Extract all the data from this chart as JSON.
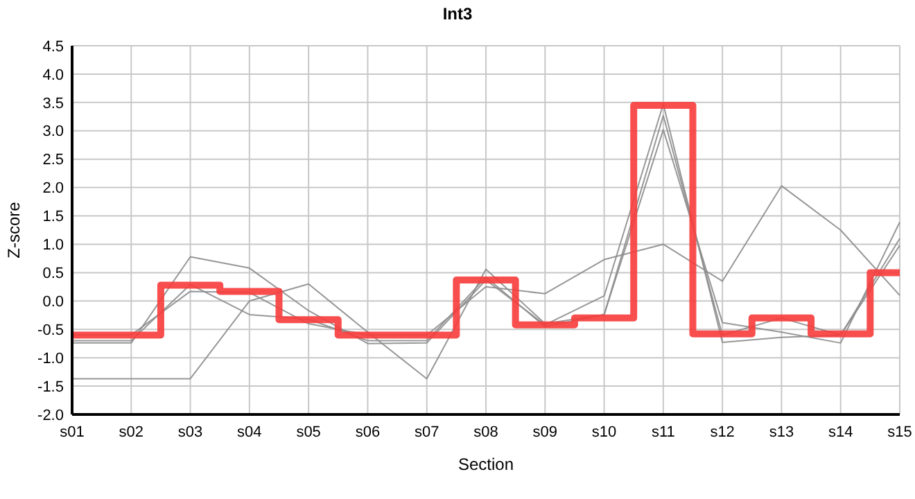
{
  "chart_data": {
    "type": "line",
    "title": "Int3",
    "xlabel": "Section",
    "ylabel": "Z-score",
    "categories": [
      "s01",
      "s02",
      "s03",
      "s04",
      "s05",
      "s06",
      "s07",
      "s08",
      "s09",
      "s10",
      "s11",
      "s12",
      "s13",
      "s14",
      "s15"
    ],
    "ylim": [
      -2,
      4.5
    ],
    "yticks": [
      {
        "value": -2,
        "label": "-2.0"
      },
      {
        "value": -1.5,
        "label": "-1.5"
      },
      {
        "value": -1,
        "label": "-1.0"
      },
      {
        "value": -0.5,
        "label": "-0.5"
      },
      {
        "value": 0,
        "label": "0.0"
      },
      {
        "value": 0.5,
        "label": "0.5"
      },
      {
        "value": 1,
        "label": "1.0"
      },
      {
        "value": 1.5,
        "label": "1.5"
      },
      {
        "value": 2,
        "label": "2.0"
      },
      {
        "value": 2.5,
        "label": "2.5"
      },
      {
        "value": 3,
        "label": "3.0"
      },
      {
        "value": 3.5,
        "label": "3.5"
      },
      {
        "value": 4,
        "label": "4.0"
      },
      {
        "value": 4.5,
        "label": "4.5"
      }
    ],
    "grid": true,
    "marker": "none",
    "series": [
      {
        "color": "#8c8c8c",
        "values": [
          -0.6,
          -0.6,
          0.17,
          0.15,
          -0.4,
          -0.6,
          -0.6,
          0.25,
          0.13,
          0.73,
          1.0,
          0.35,
          2.03,
          1.25,
          0.1
        ]
      },
      {
        "color": "#8c8c8c",
        "values": [
          -1.37,
          -1.37,
          -1.37,
          0.0,
          0.3,
          -0.55,
          -1.37,
          0.56,
          -0.4,
          -0.24,
          3.02,
          -0.38,
          -0.55,
          -0.74,
          1.39
        ]
      },
      {
        "color": "#8c8c8c",
        "values": [
          -0.74,
          -0.74,
          0.78,
          0.58,
          -0.17,
          -0.75,
          -0.74,
          0.37,
          -0.42,
          0.09,
          3.47,
          -0.73,
          -0.64,
          -0.6,
          1.1
        ]
      },
      {
        "color": "#8c8c8c",
        "values": [
          -0.7,
          -0.7,
          0.29,
          -0.24,
          -0.32,
          -0.7,
          -0.7,
          0.42,
          -0.45,
          -0.24,
          3.27,
          -0.6,
          -0.3,
          -0.6,
          0.98
        ]
      },
      {
        "type": "step",
        "color": "#f73b3b",
        "values": [
          -0.6,
          -0.6,
          0.28,
          0.17,
          -0.33,
          -0.6,
          -0.6,
          0.37,
          -0.42,
          -0.3,
          3.45,
          -0.58,
          -0.3,
          -0.58,
          0.5
        ]
      }
    ]
  }
}
